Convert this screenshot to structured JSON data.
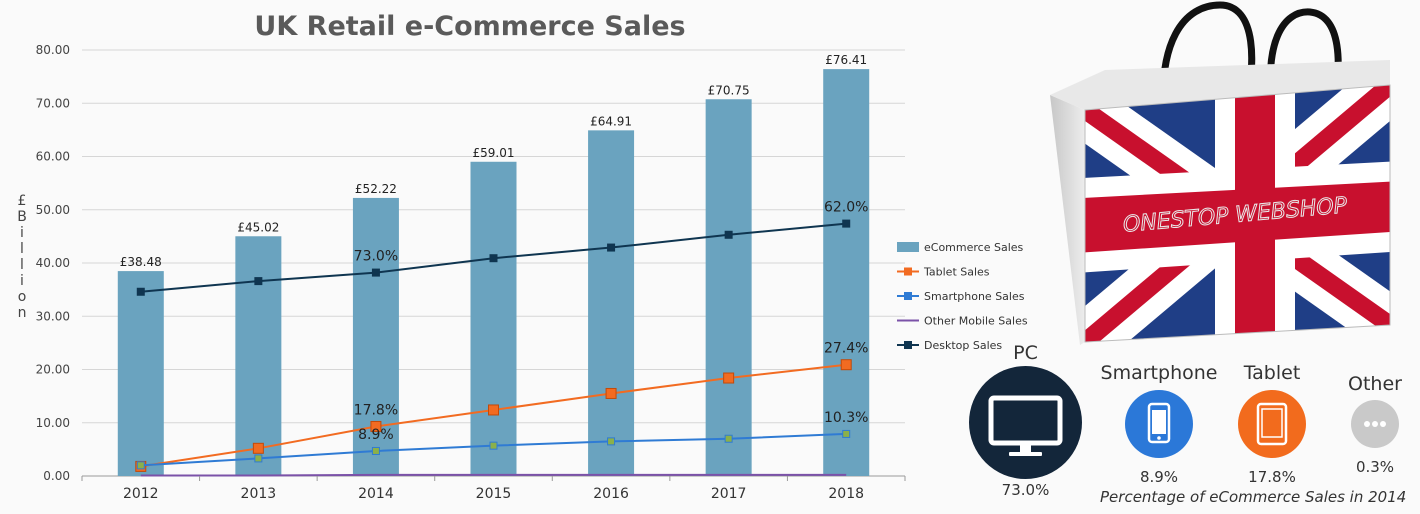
{
  "chart_data": {
    "type": "bar",
    "title": "UK Retail e-Commerce Sales",
    "ylabel": "£Billion",
    "xlabel": "",
    "ylim": [
      0,
      80
    ],
    "yticks": [
      "0.00",
      "10.00",
      "20.00",
      "30.00",
      "40.00",
      "50.00",
      "60.00",
      "70.00",
      "80.00"
    ],
    "categories": [
      "2012",
      "2013",
      "2014",
      "2015",
      "2016",
      "2017",
      "2018"
    ],
    "bar_series": {
      "name": "eCommerce Sales",
      "color": "#6aa3bf",
      "values": [
        38.48,
        45.02,
        52.22,
        59.01,
        64.91,
        70.75,
        76.41
      ],
      "labels": [
        "£38.48",
        "£45.02",
        "£52.22",
        "£59.01",
        "£64.91",
        "£70.75",
        "£76.41"
      ]
    },
    "line_series": [
      {
        "name": "Tablet Sales",
        "color": "#f26b21",
        "values": [
          1.8,
          5.2,
          9.3,
          12.4,
          15.5,
          18.4,
          20.9
        ]
      },
      {
        "name": "Smartphone Sales",
        "color": "#2f7bd4",
        "values": [
          2.0,
          3.3,
          4.7,
          5.7,
          6.5,
          7.0,
          7.9
        ]
      },
      {
        "name": "Other Mobile Sales",
        "color": "#7b52a8",
        "values": [
          0.1,
          0.1,
          0.2,
          0.2,
          0.2,
          0.2,
          0.2
        ]
      },
      {
        "name": "Desktop Sales",
        "color": "#0f3550",
        "values": [
          34.6,
          36.6,
          38.2,
          40.9,
          42.9,
          45.3,
          47.4
        ]
      }
    ],
    "legend_position": "right",
    "annotations": [
      {
        "series": "Desktop Sales",
        "category": "2014",
        "text": "73.0%"
      },
      {
        "series": "Desktop Sales",
        "category": "2018",
        "text": "62.0%"
      },
      {
        "series": "Tablet Sales",
        "category": "2014",
        "text": "17.8%"
      },
      {
        "series": "Tablet Sales",
        "category": "2018",
        "text": "27.4%"
      },
      {
        "series": "Smartphone Sales",
        "category": "2014",
        "text": "8.9%"
      },
      {
        "series": "Smartphone Sales",
        "category": "2018",
        "text": "10.3%"
      }
    ]
  },
  "bag": {
    "brand_text": "ONESTOP WEBSHOP"
  },
  "devices": [
    {
      "name": "PC",
      "pct": "73.0%",
      "color": "#13263a",
      "icon": "monitor-icon"
    },
    {
      "name": "Smartphone",
      "pct": "8.9%",
      "color": "#2b78d8",
      "icon": "smartphone-icon"
    },
    {
      "name": "Tablet",
      "pct": "17.8%",
      "color": "#f26b1d",
      "icon": "tablet-icon"
    },
    {
      "name": "Other",
      "pct": "0.3%",
      "color": "#c9c9c9",
      "icon": "ellipsis-icon"
    }
  ],
  "caption": "Percentage of eCommerce Sales in 2014"
}
